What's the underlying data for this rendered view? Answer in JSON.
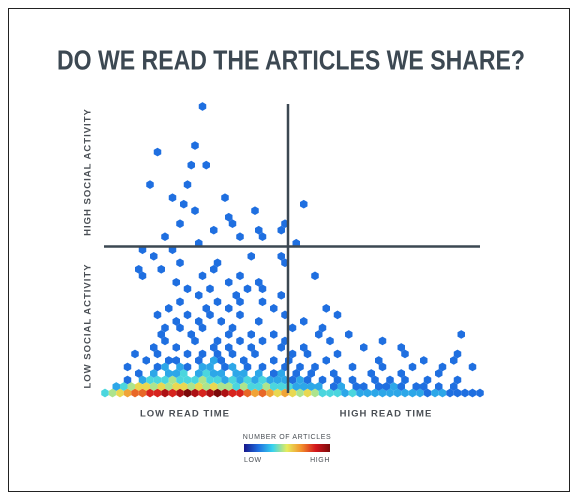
{
  "chart_data": {
    "type": "hexbin",
    "title": "DO WE READ THE ARTICLES WE SHARE?",
    "y_labels": [
      "HIGH SOCIAL ACTIVITY",
      "LOW SOCIAL ACTIVITY"
    ],
    "x_labels": [
      "LOW READ TIME",
      "HIGH READ TIME"
    ],
    "legend": {
      "title": "NUMBER OF ARTICLES",
      "low": "LOW",
      "high": "HIGH"
    },
    "colors": [
      "#16168a",
      "#1f6fe0",
      "#38d3ee",
      "#e7ec5c",
      "#f2902c",
      "#d4161c",
      "#7c0b0b"
    ],
    "clim": [
      1,
      10
    ],
    "xlim": [
      0,
      50
    ],
    "ylim": [
      0,
      45
    ],
    "dividers": {
      "x": 24.4,
      "y": 22.5
    },
    "hexes": {
      "x": [
        0,
        1,
        2,
        3,
        4,
        5,
        6,
        7,
        8,
        9,
        10,
        11,
        12,
        13,
        14,
        15,
        16,
        17,
        18,
        19,
        20,
        21,
        22,
        23,
        24,
        25,
        26,
        27,
        28,
        29,
        30,
        31,
        32,
        33,
        34,
        35,
        36,
        37,
        38,
        39,
        40,
        41,
        42,
        43,
        44,
        45,
        46,
        47,
        48,
        49,
        50,
        1.5,
        2.5,
        3.5,
        4.5,
        5.5,
        6.5,
        7.5,
        8.5,
        9.5,
        10.5,
        11.5,
        12.5,
        13.5,
        14.5,
        15.5,
        16.5,
        17.5,
        18.5,
        19.5,
        20.5,
        21.5,
        22.5,
        23.5,
        24.5,
        25.5,
        26.5,
        27.5,
        28.5,
        30.5,
        31.5,
        33.5,
        34.5,
        36.5,
        37.5,
        38.5,
        39.5,
        41.5,
        42.5,
        44.5,
        46.5,
        3,
        5,
        6,
        7,
        8,
        9,
        10,
        11,
        12,
        13,
        14,
        15,
        16,
        17,
        18,
        19,
        20,
        21,
        22,
        23,
        24,
        25,
        26,
        27,
        29,
        31,
        33,
        36,
        38,
        40,
        43,
        47,
        4.5,
        6.5,
        8.5,
        9.5,
        10.5,
        12.5,
        13.5,
        14.5,
        15.5,
        17.5,
        18.5,
        20.5,
        22.5,
        23.5,
        25.5,
        27.5,
        30.5,
        35.5,
        39.5,
        44.5,
        3,
        7,
        8,
        10,
        11,
        13,
        14,
        16,
        17,
        19,
        21,
        24,
        26,
        28,
        33,
        37,
        41,
        45,
        49,
        5.5,
        8.5,
        9.5,
        12.5,
        14.5,
        15.5,
        18.5,
        22.5,
        24.5,
        29.5,
        36.5,
        42.5,
        46.5,
        4,
        7,
        11,
        13,
        15,
        17,
        20,
        25,
        27,
        31,
        40,
        47,
        6.5,
        9.5,
        14.5,
        16.5,
        19.5,
        23.5,
        26.5,
        34.5,
        39.5,
        8,
        12,
        15,
        18,
        21,
        24,
        30,
        37,
        7.5,
        11.5,
        16.5,
        19.5,
        22.5,
        28.5,
        32.5,
        47.5,
        8,
        10,
        13,
        17,
        25,
        29,
        9.5,
        12.5,
        15.5,
        20.5,
        26.5,
        7,
        11,
        14,
        18,
        24,
        31,
        8.5,
        13.5,
        16.5,
        22.5,
        29.5,
        10,
        15,
        18,
        21,
        12.5,
        17.5,
        23.5,
        11,
        14,
        19,
        21,
        9.5,
        16.5,
        20.5,
        5,
        13,
        18,
        28,
        4.5,
        7.5,
        14.5,
        10,
        15,
        24,
        6.5,
        19.5,
        23.5,
        5,
        9,
        12.5,
        25.5,
        8,
        18,
        21,
        14.5,
        20.5,
        23.5,
        10,
        17,
        24,
        16.5,
        12,
        20,
        10.5,
        26.5,
        9,
        16,
        6,
        11,
        11.5,
        13.5,
        7,
        12,
        13
      ],
      "y": [
        0,
        0,
        0,
        0,
        0,
        0,
        0,
        0,
        0,
        0,
        0,
        0,
        0,
        0,
        0,
        0,
        0,
        0,
        0,
        0,
        0,
        0,
        0,
        0,
        0,
        0,
        0,
        0,
        0,
        0,
        0,
        0,
        0,
        0,
        0,
        0,
        0,
        0,
        0,
        0,
        0,
        0,
        0,
        0,
        0,
        0,
        0,
        0,
        0,
        0,
        0,
        1,
        1,
        1,
        1,
        1,
        1,
        1,
        1,
        1,
        1,
        1,
        1,
        1,
        1,
        1,
        1,
        1,
        1,
        1,
        1,
        1,
        1,
        1,
        1,
        1,
        1,
        1,
        1,
        1,
        1,
        1,
        1,
        1,
        1,
        1,
        1,
        1,
        1,
        1,
        1,
        2,
        2,
        2,
        2,
        2,
        2,
        2,
        2,
        2,
        2,
        2,
        2,
        2,
        2,
        2,
        2,
        2,
        2,
        2,
        2,
        2,
        2,
        2,
        2,
        2,
        2,
        2,
        2,
        2,
        2,
        2,
        2,
        3,
        3,
        3,
        3,
        3,
        3,
        3,
        3,
        3,
        3,
        3,
        3,
        3,
        3,
        3,
        3,
        3,
        3,
        3,
        3,
        4,
        4,
        4,
        4,
        4,
        4,
        4,
        4,
        4,
        4,
        4,
        4,
        4,
        4,
        4,
        4,
        4,
        4,
        4,
        5,
        5,
        5,
        5,
        5,
        5,
        5,
        5,
        5,
        5,
        5,
        5,
        5,
        6,
        6,
        6,
        6,
        6,
        6,
        6,
        6,
        6,
        6,
        6,
        6,
        7,
        7,
        7,
        7,
        7,
        7,
        7,
        7,
        7,
        8,
        8,
        8,
        8,
        8,
        8,
        8,
        8,
        9,
        9,
        9,
        9,
        9,
        9,
        9,
        9,
        10,
        10,
        10,
        10,
        10,
        10,
        11,
        11,
        11,
        11,
        11,
        12,
        12,
        12,
        12,
        12,
        12,
        13,
        13,
        13,
        13,
        13,
        14,
        14,
        14,
        14,
        15,
        15,
        15,
        16,
        16,
        16,
        16,
        17,
        17,
        17,
        18,
        18,
        18,
        18,
        19,
        19,
        19,
        20,
        20,
        20,
        21,
        21,
        21,
        22,
        22,
        23,
        23,
        24,
        24,
        24,
        25,
        25,
        25,
        26,
        26,
        26,
        27,
        28,
        28,
        29,
        29,
        30,
        30,
        32,
        32,
        35,
        35,
        37,
        38,
        44
      ],
      "counts": [
        3,
        4,
        5,
        6,
        7,
        7,
        8,
        8,
        9,
        8,
        9,
        10,
        9,
        8,
        9,
        10,
        9,
        8,
        8,
        7,
        6,
        7,
        6,
        5,
        6,
        5,
        4,
        5,
        4,
        3,
        3,
        3,
        2,
        3,
        2,
        2,
        2,
        2,
        2,
        2,
        2,
        2,
        2,
        1,
        2,
        2,
        1,
        1,
        1,
        1,
        1,
        2,
        3,
        4,
        5,
        5,
        4,
        5,
        4,
        5,
        5,
        4,
        5,
        4,
        5,
        4,
        4,
        3,
        4,
        3,
        3,
        4,
        3,
        3,
        3,
        2,
        2,
        2,
        2,
        1,
        2,
        1,
        1,
        1,
        1,
        2,
        1,
        1,
        1,
        1,
        1,
        1,
        2,
        3,
        3,
        3,
        4,
        3,
        3,
        3,
        4,
        3,
        3,
        2,
        3,
        2,
        3,
        2,
        3,
        2,
        2,
        2,
        1,
        2,
        1,
        1,
        1,
        1,
        1,
        1,
        1,
        1,
        1,
        1,
        2,
        2,
        2,
        3,
        2,
        3,
        2,
        2,
        2,
        2,
        2,
        1,
        2,
        1,
        1,
        1,
        1,
        1,
        1,
        1,
        1,
        2,
        2,
        1,
        2,
        2,
        1,
        2,
        1,
        1,
        1,
        1,
        1,
        1,
        1,
        1,
        1,
        1,
        1,
        1,
        1,
        1,
        2,
        1,
        1,
        1,
        1,
        1,
        1,
        1,
        1,
        1,
        1,
        1,
        1,
        1,
        1,
        1,
        1,
        1,
        1,
        1,
        1,
        1,
        1,
        1,
        1,
        1,
        1,
        1,
        1,
        1,
        1,
        1,
        1,
        1,
        1,
        1,
        1,
        1,
        1,
        1,
        1,
        1,
        1,
        1,
        1,
        1,
        1,
        1,
        1,
        1,
        1,
        1,
        1,
        1,
        1,
        1,
        1,
        1,
        1,
        1,
        1,
        1,
        1,
        1,
        1,
        1,
        1,
        1,
        1,
        1,
        1,
        1,
        1,
        1,
        1,
        1,
        1,
        1,
        1,
        1,
        1,
        1,
        1,
        1,
        1,
        1,
        1,
        1,
        1,
        1,
        1,
        1,
        1,
        1,
        1,
        1,
        1,
        1,
        1,
        1,
        1,
        1,
        1,
        1,
        1,
        1,
        1,
        1,
        1,
        1,
        1,
        1,
        1,
        1,
        1,
        1,
        1,
        1,
        1,
        1,
        1,
        1
      ]
    }
  }
}
